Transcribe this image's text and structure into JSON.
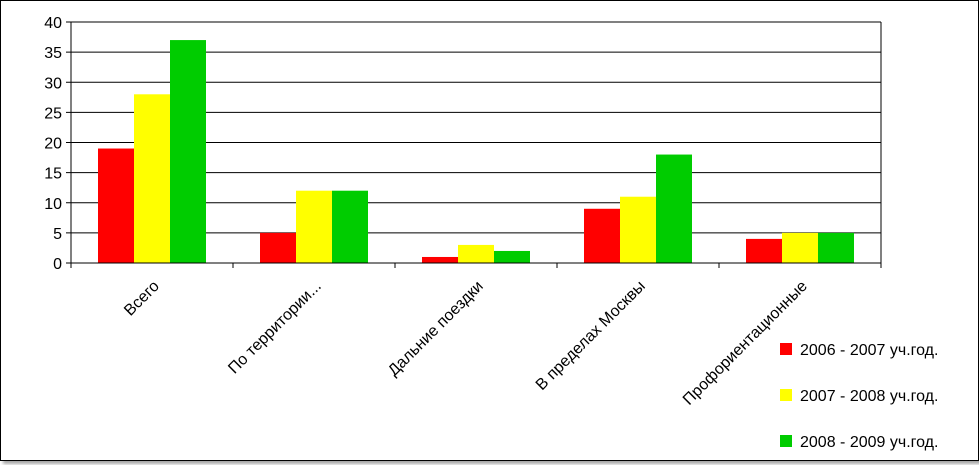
{
  "chart_data": {
    "type": "bar",
    "title": "",
    "xlabel": "",
    "ylabel": "",
    "ylim": [
      0,
      40
    ],
    "yticks": [
      0,
      5,
      10,
      15,
      20,
      25,
      30,
      35,
      40
    ],
    "grid": true,
    "legend_position": "bottom-right",
    "categories": [
      "Всего",
      "По территории...",
      "Дальние поездки",
      "В пределах Москвы",
      "Профориентационные"
    ],
    "series": [
      {
        "name": "2006 - 2007 уч.год.",
        "color": "#ff0000",
        "values": [
          19,
          5,
          1,
          9,
          4
        ]
      },
      {
        "name": "2007 - 2008 уч.год.",
        "color": "#ffff00",
        "values": [
          28,
          12,
          3,
          11,
          5
        ]
      },
      {
        "name": "2008 - 2009 уч.год.",
        "color": "#00cc00",
        "values": [
          37,
          12,
          2,
          18,
          5
        ]
      }
    ]
  }
}
